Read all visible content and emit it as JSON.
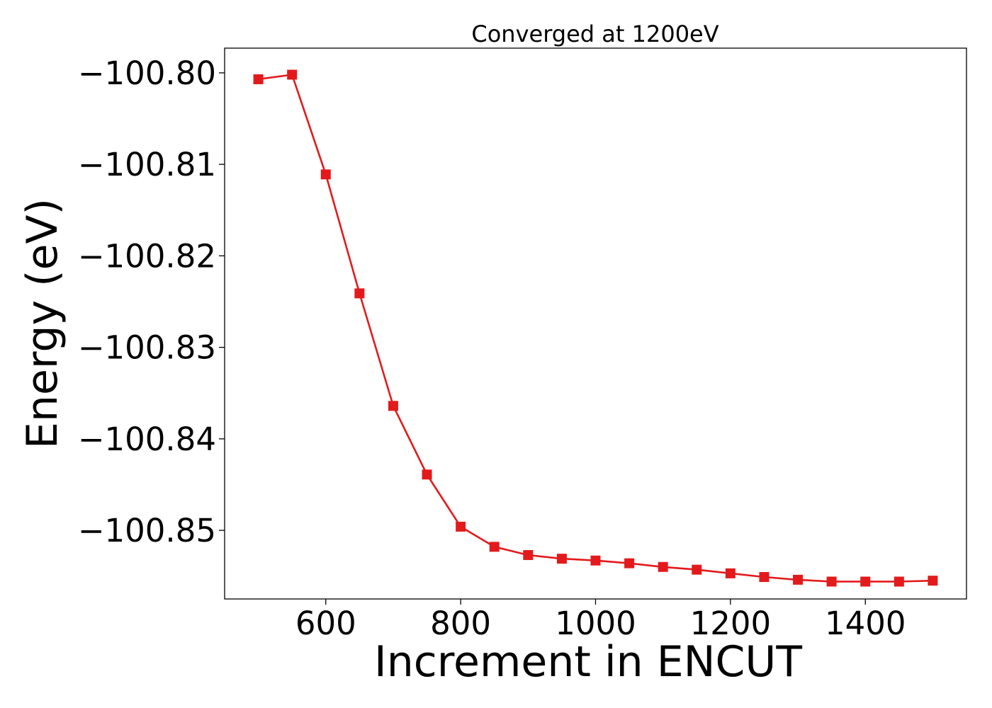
{
  "chart_data": {
    "type": "line",
    "title": "Converged at 1200eV",
    "xlabel": "Increment in ENCUT",
    "ylabel": "Energy (eV)",
    "xlim": [
      450,
      1550
    ],
    "ylim": [
      -100.8575,
      -100.7973
    ],
    "xticks": [
      600,
      800,
      1000,
      1200,
      1400
    ],
    "yticks": [
      -100.8,
      -100.81,
      -100.82,
      -100.83,
      -100.84,
      -100.85
    ],
    "ytick_labels": [
      "−100.80",
      "−100.81",
      "−100.82",
      "−100.83",
      "−100.84",
      "−100.85"
    ],
    "grid": false,
    "series": [
      {
        "color": "#e31a1c",
        "marker": "square",
        "x": [
          500,
          550,
          600,
          650,
          700,
          750,
          800,
          850,
          900,
          950,
          1000,
          1050,
          1100,
          1150,
          1200,
          1250,
          1300,
          1350,
          1400,
          1450,
          1500
        ],
        "values": [
          -100.8007,
          -100.8002,
          -100.8111,
          -100.8241,
          -100.8364,
          -100.8439,
          -100.8496,
          -100.8518,
          -100.8527,
          -100.8531,
          -100.8533,
          -100.8536,
          -100.854,
          -100.8543,
          -100.8547,
          -100.8551,
          -100.8554,
          -100.8556,
          -100.8556,
          -100.8556,
          -100.8555
        ]
      }
    ]
  }
}
